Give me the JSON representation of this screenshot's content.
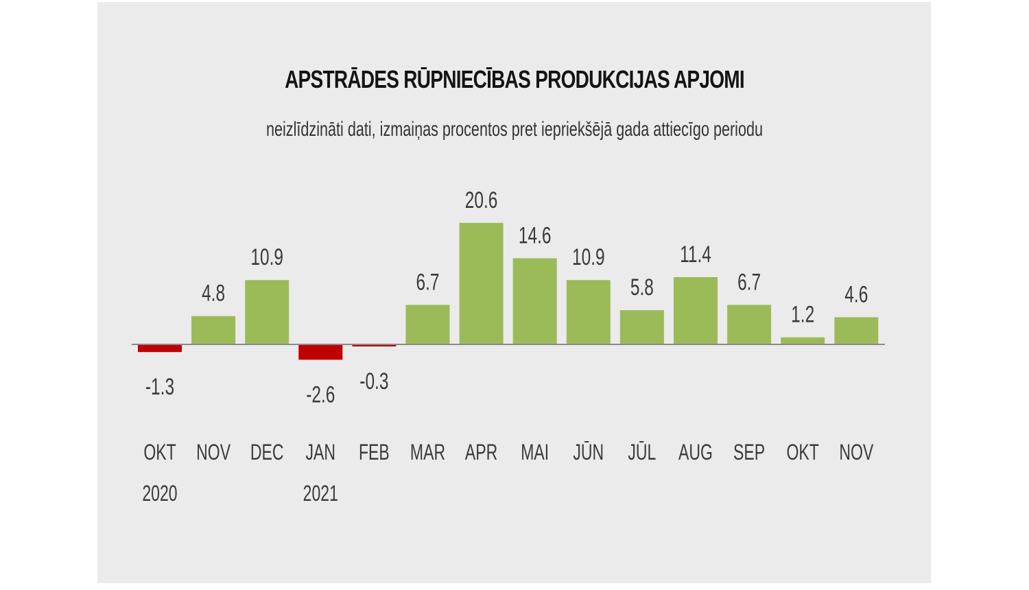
{
  "chart_data": {
    "type": "bar",
    "title": "APSTRĀDES RŪPNIECĪBAS PRODUKCIJAS APJOMI",
    "subtitle": "neizlīdzināti dati, izmaiņas procentos pret iepriekšējā gada attiecīgo periodu",
    "categories": [
      "OKT",
      "NOV",
      "DEC",
      "JAN",
      "FEB",
      "MAR",
      "APR",
      "MAI",
      "JŪN",
      "JŪL",
      "AUG",
      "SEP",
      "OKT",
      "NOV"
    ],
    "years": [
      "2020",
      "",
      "",
      "2021",
      "",
      "",
      "",
      "",
      "",
      "",
      "",
      "",
      "",
      ""
    ],
    "values": [
      -1.3,
      4.8,
      10.9,
      -2.6,
      -0.3,
      6.7,
      20.6,
      14.6,
      10.9,
      5.8,
      11.4,
      6.7,
      1.2,
      4.6
    ],
    "value_labels": [
      "-1.3",
      "4.8",
      "10.9",
      "-2.6",
      "-0.3",
      "6.7",
      "20.6",
      "14.6",
      "10.9",
      "5.8",
      "11.4",
      "6.7",
      "1.2",
      "4.6"
    ],
    "colors": {
      "positive": "#9bbb59",
      "negative": "#c00000",
      "axis": "#8a8a8a"
    },
    "ylim": [
      -2.6,
      20.6
    ],
    "grid": false,
    "legend": "none"
  }
}
